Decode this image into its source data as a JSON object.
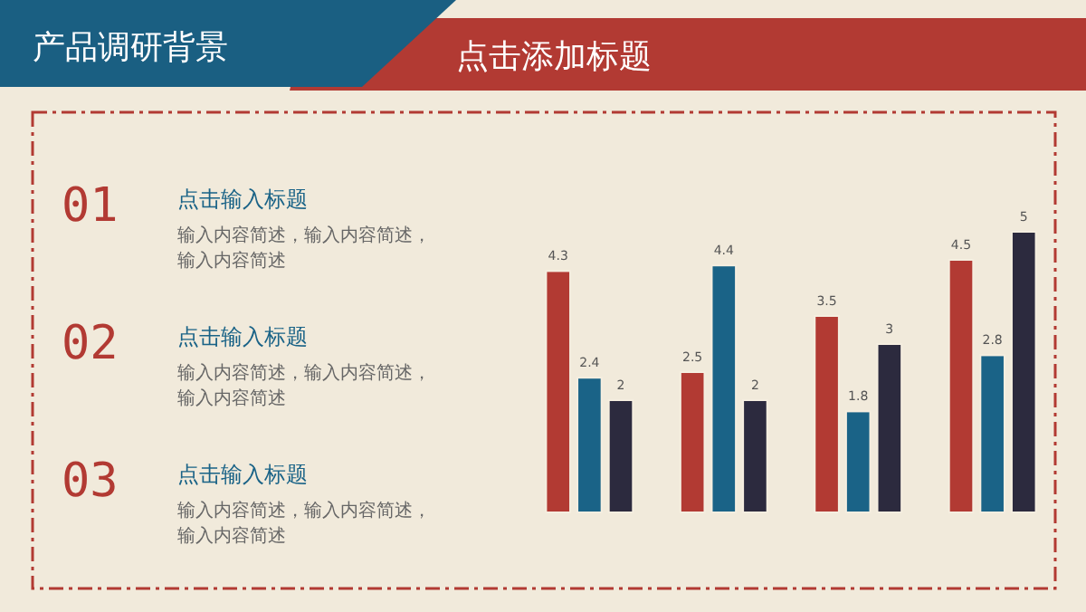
{
  "chart_data": {
    "type": "bar",
    "title": "产品调研背景",
    "subtitle": "点击添加标题",
    "categories": [
      null,
      null,
      null,
      null
    ],
    "series": [
      {
        "color": "#b23a33",
        "values": [
          4.3,
          2.5,
          3.5,
          4.5
        ]
      },
      {
        "color": "#1a6387",
        "values": [
          2.4,
          4.4,
          1.8,
          2.8
        ]
      },
      {
        "color": "#2c2a3e",
        "values": [
          2,
          2,
          3,
          5
        ]
      }
    ],
    "data_labels": true,
    "annotations": [
      "01",
      "点击输入标题",
      "输入内容简述，输入内容简述，",
      "输入内容简述",
      "02",
      "点击输入标题",
      "输入内容简述，输入内容简述，",
      "输入内容简述",
      "03",
      "点击输入标题",
      "输入内容简述，输入内容简述，",
      "输入内容简述"
    ]
  }
}
